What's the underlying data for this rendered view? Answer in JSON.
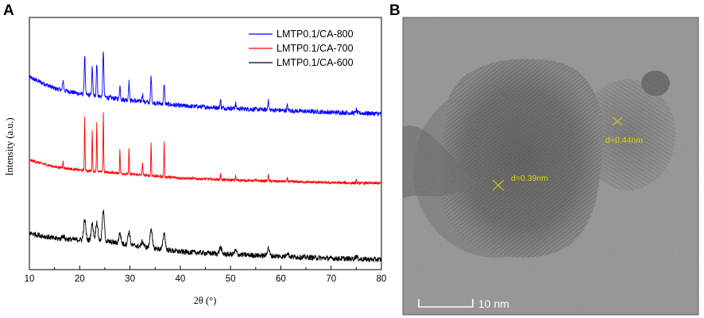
{
  "panels": {
    "a_label": "A",
    "b_label": "B"
  },
  "chart_data": {
    "type": "line",
    "title": "",
    "xlabel": "2θ (°)",
    "ylabel": "Intensity (a.u.)",
    "xlim": [
      10,
      80
    ],
    "xticks": [
      10,
      20,
      30,
      40,
      50,
      60,
      70,
      80
    ],
    "y_ticks_shown": false,
    "legend_position": "top-right",
    "series": [
      {
        "name": "LMTP0.1/CA-800",
        "color": "#0000ff",
        "offset": 2.2,
        "baseline_points": [
          [
            10,
            0.55
          ],
          [
            15,
            0.38
          ],
          [
            20,
            0.3
          ],
          [
            25,
            0.25
          ],
          [
            30,
            0.2
          ],
          [
            40,
            0.12
          ],
          [
            50,
            0.08
          ],
          [
            60,
            0.05
          ],
          [
            70,
            0.02
          ],
          [
            80,
            0.0
          ]
        ],
        "peaks": [
          [
            16.7,
            0.15
          ],
          [
            21.0,
            0.6
          ],
          [
            22.5,
            0.42
          ],
          [
            23.4,
            0.5
          ],
          [
            24.7,
            0.7
          ],
          [
            28.0,
            0.2
          ],
          [
            29.8,
            0.28
          ],
          [
            32.5,
            0.12
          ],
          [
            34.2,
            0.4
          ],
          [
            36.8,
            0.3
          ],
          [
            48.0,
            0.12
          ],
          [
            51.0,
            0.08
          ],
          [
            57.5,
            0.15
          ],
          [
            61.3,
            0.08
          ],
          [
            75.0,
            0.05
          ]
        ]
      },
      {
        "name": "LMTP0.1/CA-700",
        "color": "#ff0000",
        "offset": 1.15,
        "baseline_points": [
          [
            10,
            0.35
          ],
          [
            15,
            0.25
          ],
          [
            20,
            0.2
          ],
          [
            25,
            0.17
          ],
          [
            30,
            0.14
          ],
          [
            40,
            0.08
          ],
          [
            50,
            0.05
          ],
          [
            60,
            0.03
          ],
          [
            70,
            0.01
          ],
          [
            80,
            0.0
          ]
        ],
        "peaks": [
          [
            16.7,
            0.1
          ],
          [
            21.0,
            0.8
          ],
          [
            22.5,
            0.6
          ],
          [
            23.4,
            0.75
          ],
          [
            24.7,
            0.9
          ],
          [
            28.0,
            0.35
          ],
          [
            29.8,
            0.38
          ],
          [
            32.5,
            0.2
          ],
          [
            34.2,
            0.5
          ],
          [
            36.8,
            0.52
          ],
          [
            48.0,
            0.1
          ],
          [
            51.0,
            0.06
          ],
          [
            57.5,
            0.12
          ],
          [
            61.3,
            0.06
          ],
          [
            75.0,
            0.04
          ]
        ]
      },
      {
        "name": "LMTP0.1/CA-600",
        "color": "#000000",
        "offset": 0.0,
        "baseline_points": [
          [
            10,
            0.4
          ],
          [
            15,
            0.32
          ],
          [
            20,
            0.3
          ],
          [
            25,
            0.28
          ],
          [
            30,
            0.22
          ],
          [
            40,
            0.12
          ],
          [
            50,
            0.08
          ],
          [
            60,
            0.05
          ],
          [
            70,
            0.02
          ],
          [
            80,
            0.0
          ]
        ],
        "peaks": [
          [
            16.7,
            0.05
          ],
          [
            21.0,
            0.3
          ],
          [
            22.5,
            0.25
          ],
          [
            23.4,
            0.28
          ],
          [
            24.7,
            0.45
          ],
          [
            28.0,
            0.15
          ],
          [
            29.8,
            0.2
          ],
          [
            32.5,
            0.08
          ],
          [
            34.2,
            0.3
          ],
          [
            36.8,
            0.25
          ],
          [
            48.0,
            0.1
          ],
          [
            51.0,
            0.06
          ],
          [
            57.5,
            0.12
          ],
          [
            61.3,
            0.06
          ],
          [
            75.0,
            0.04
          ]
        ]
      }
    ]
  },
  "tem": {
    "d_spacing_1": "d=0.39nm",
    "d_spacing_2": "d=0.44nm",
    "scale_bar_label": "10 nm",
    "label_color": "#d8d800"
  }
}
